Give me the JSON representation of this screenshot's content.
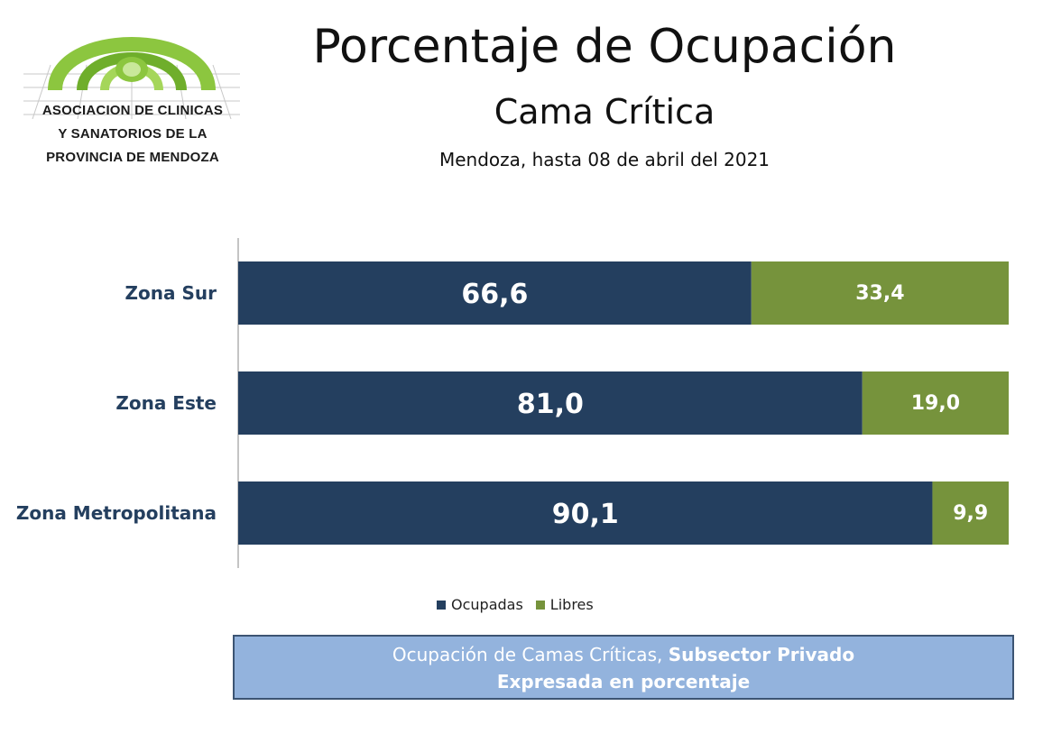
{
  "header": {
    "title": "Porcentaje de Ocupación",
    "subtitle": "Cama Crítica",
    "caption": "Mendoza, hasta 08 de abril del 2021"
  },
  "logo": {
    "lines": [
      "ASOCIACION DE CLINICAS",
      "Y SANATORIOS DE LA",
      "PROVINCIA DE MENDOZA"
    ],
    "color": "#8cc63f"
  },
  "chart_data": {
    "type": "bar",
    "orientation": "horizontal",
    "stacked": true,
    "categories": [
      "Zona Sur",
      "Zona Este",
      "Zona Metropolitana"
    ],
    "series": [
      {
        "name": "Ocupadas",
        "values": [
          66.6,
          81.0,
          90.1
        ],
        "labels": [
          "66,6",
          "81,0",
          "90,1"
        ],
        "color": "#243f5f"
      },
      {
        "name": "Libres",
        "values": [
          33.4,
          19.0,
          9.9
        ],
        "labels": [
          "33,4",
          "19,0",
          "9,9"
        ],
        "color": "#76933c"
      }
    ],
    "xlim": [
      0,
      100
    ],
    "grid": false,
    "legend_position": "bottom"
  },
  "footer": {
    "line1_normal": "Ocupación de Camas Críticas, ",
    "line1_bold": "Subsector Privado",
    "line2": "Expresada en porcentaje"
  }
}
